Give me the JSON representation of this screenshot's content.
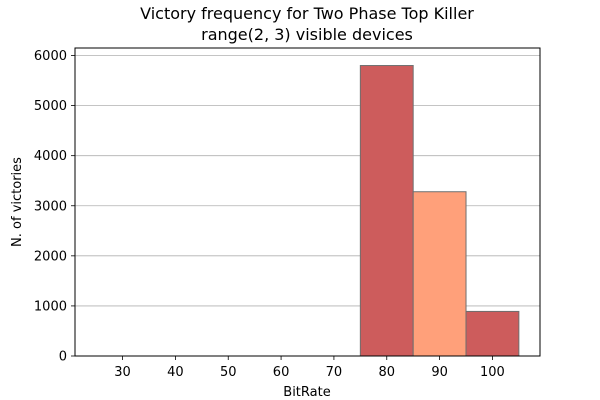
{
  "chart_data": {
    "type": "bar",
    "title": "Victory frequency for Two Phase Top Killer",
    "subtitle": "range(2, 3) visible devices",
    "xlabel": "BitRate",
    "ylabel": "N. of victories",
    "xlim": [
      21,
      109
    ],
    "ylim": [
      0,
      6150
    ],
    "xticks": [
      30,
      40,
      50,
      60,
      70,
      80,
      90,
      100
    ],
    "yticks": [
      0,
      1000,
      2000,
      3000,
      4000,
      5000,
      6000
    ],
    "grid": "y",
    "bars": [
      {
        "x": 80,
        "width": 10,
        "value": 5800,
        "color": "#cd5c5c"
      },
      {
        "x": 90,
        "width": 10,
        "value": 3280,
        "color": "#ffa07a"
      },
      {
        "x": 100,
        "width": 10,
        "value": 890,
        "color": "#cd5c5c"
      }
    ],
    "bar_edge_color": "#6e6e6e",
    "grid_color": "#b0b0b0"
  }
}
